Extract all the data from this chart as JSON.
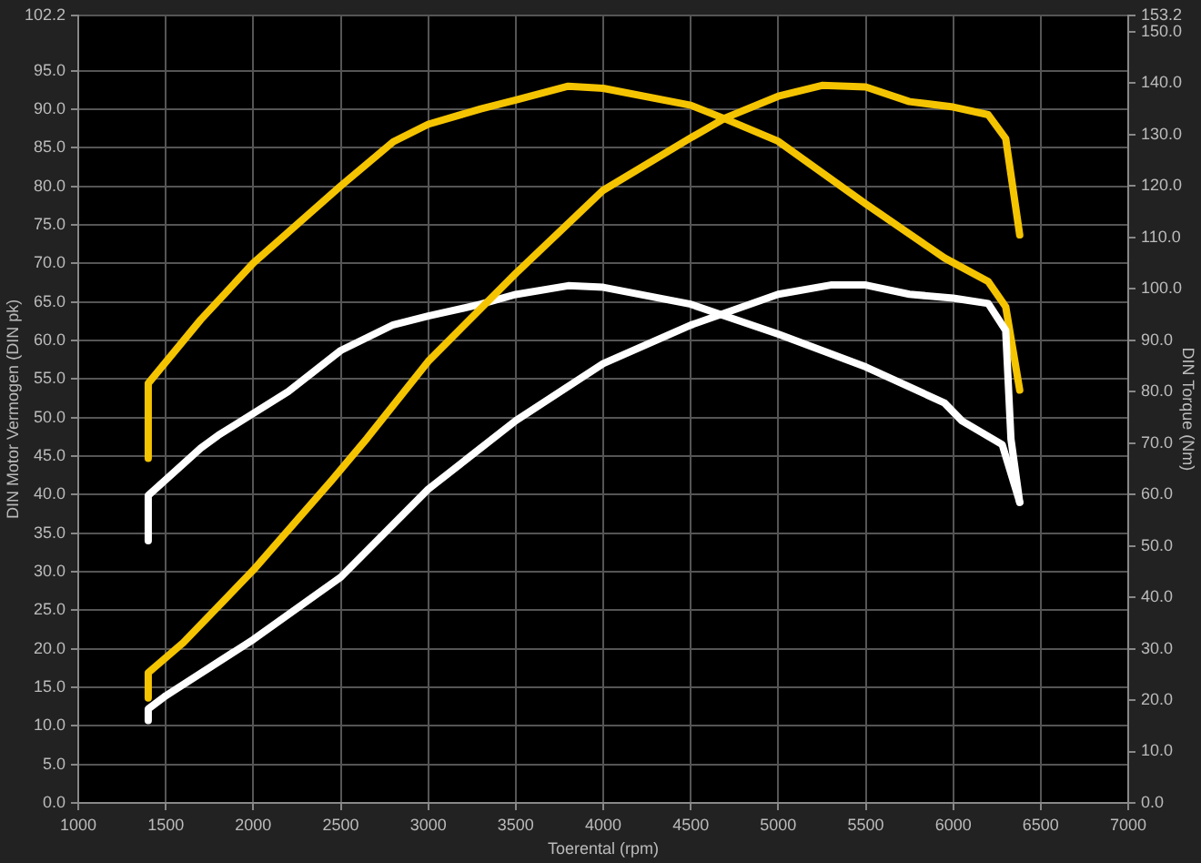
{
  "chart_data": {
    "type": "line",
    "xlabel": "Toerental (rpm)",
    "ylabel": "DIN Motor Vermogen (DIN pk)",
    "y2label": "DIN Torque (Nm)",
    "xlim": [
      1000,
      7000
    ],
    "xticks": [
      1000,
      1500,
      2000,
      2500,
      3000,
      3500,
      4000,
      4500,
      5000,
      5500,
      6000,
      6500,
      7000
    ],
    "ylim": [
      0,
      102.2
    ],
    "yticks": [
      {
        "value": 0,
        "label": "0.0"
      },
      {
        "value": 5,
        "label": "5.0"
      },
      {
        "value": 10,
        "label": "10.0"
      },
      {
        "value": 15,
        "label": "15.0"
      },
      {
        "value": 20,
        "label": "20.0"
      },
      {
        "value": 25,
        "label": "25.0"
      },
      {
        "value": 30,
        "label": "30.0"
      },
      {
        "value": 35,
        "label": "35.0"
      },
      {
        "value": 40,
        "label": "40.0"
      },
      {
        "value": 45,
        "label": "45.0"
      },
      {
        "value": 50,
        "label": "50.0"
      },
      {
        "value": 55,
        "label": "55.0"
      },
      {
        "value": 60,
        "label": "60.0"
      },
      {
        "value": 65,
        "label": "65.0"
      },
      {
        "value": 70,
        "label": "70.0"
      },
      {
        "value": 75,
        "label": "75.0"
      },
      {
        "value": 80,
        "label": "80.0"
      },
      {
        "value": 85,
        "label": "85.0"
      },
      {
        "value": 90,
        "label": "90.0"
      },
      {
        "value": 95,
        "label": "95.0"
      },
      {
        "value": 102.2,
        "label": "102.2"
      }
    ],
    "y2lim": [
      0,
      153.2
    ],
    "y2ticks": [
      {
        "value": 0,
        "label": "0.0"
      },
      {
        "value": 10,
        "label": "10.0"
      },
      {
        "value": 20,
        "label": "20.0"
      },
      {
        "value": 30,
        "label": "30.0"
      },
      {
        "value": 40,
        "label": "40.0"
      },
      {
        "value": 50,
        "label": "50.0"
      },
      {
        "value": 60,
        "label": "60.0"
      },
      {
        "value": 70,
        "label": "70.0"
      },
      {
        "value": 80,
        "label": "80.0"
      },
      {
        "value": 90,
        "label": "90.0"
      },
      {
        "value": 100,
        "label": "100.0"
      },
      {
        "value": 110,
        "label": "110.0"
      },
      {
        "value": 120,
        "label": "120.0"
      },
      {
        "value": 130,
        "label": "130.0"
      },
      {
        "value": 140,
        "label": "140.0"
      },
      {
        "value": 150,
        "label": "150.0"
      },
      {
        "value": 153.2,
        "label": "153.2"
      }
    ],
    "grid": true,
    "legend": false,
    "line_style": "solid",
    "marker": "none",
    "series": [
      {
        "color": "#ffffff",
        "x": [
          1400,
          1400,
          1500,
          2000,
          2500,
          3000,
          3500,
          4000,
          4500,
          5000,
          5300,
          5500,
          5750,
          6000,
          6200,
          6300,
          6330,
          6380
        ],
        "values": [
          10.7,
          12.2,
          13.9,
          21.2,
          29.3,
          40.7,
          49.6,
          57,
          62,
          66,
          67.2,
          67.2,
          66,
          65.5,
          64.8,
          61.3,
          47.2,
          39
        ]
      },
      {
        "color": "#f5c400",
        "x": [
          1400,
          1400,
          1600,
          2000,
          2450,
          2650,
          3000,
          3500,
          4000,
          4500,
          4700,
          5000,
          5250,
          5500,
          5750,
          6000,
          6200,
          6300,
          6380
        ],
        "values": [
          13.6,
          16.9,
          20.8,
          30.2,
          41.9,
          47.3,
          57.3,
          68.7,
          79.5,
          86.3,
          88.9,
          91.7,
          93.1,
          92.9,
          91,
          90.3,
          89.3,
          86.2,
          73.7
        ]
      },
      {
        "color": "#ffffff",
        "axis": "y2",
        "x": [
          1400,
          1400,
          1700,
          1800,
          2200,
          2500,
          2800,
          3000,
          3300,
          3500,
          3800,
          4000,
          4500,
          5000,
          5500,
          5950,
          6050,
          6280,
          6380
        ],
        "values": [
          51,
          59.8,
          69,
          71.5,
          80,
          88,
          93,
          94.7,
          97,
          98.9,
          100.6,
          100.3,
          97,
          91.2,
          84.8,
          77.8,
          74.3,
          69.7,
          58.5
        ]
      },
      {
        "color": "#f5c400",
        "axis": "y2",
        "x": [
          1400,
          1400,
          1700,
          2000,
          2500,
          2800,
          3000,
          3300,
          3500,
          3800,
          4000,
          4500,
          4700,
          5000,
          5500,
          5950,
          6200,
          6300,
          6380
        ],
        "values": [
          67,
          81.6,
          94,
          105,
          120,
          128.6,
          132,
          135,
          136.7,
          139.4,
          139,
          135.7,
          133,
          128.7,
          116.5,
          106,
          101.4,
          96.5,
          80.3
        ]
      }
    ]
  }
}
